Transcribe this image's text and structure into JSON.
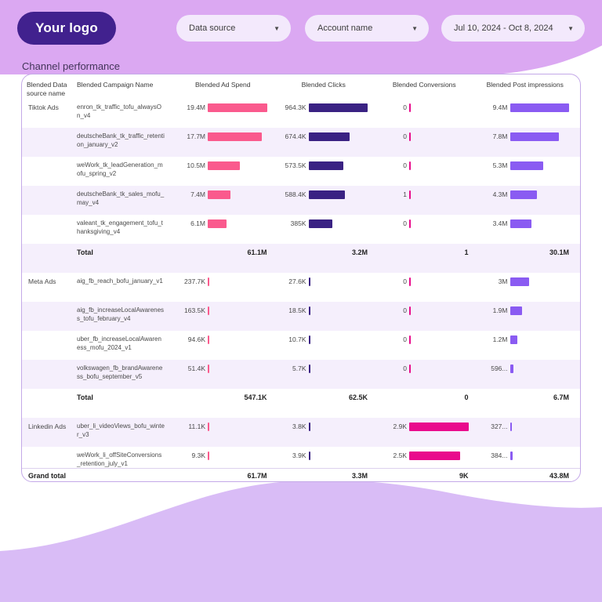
{
  "logo": {
    "label": "Your logo"
  },
  "filters": {
    "data_source": {
      "label": "Data source"
    },
    "account_name": {
      "label": "Account name"
    },
    "date_range": {
      "label": "Jul 10, 2024 - Oct 8, 2024"
    }
  },
  "section": {
    "title": "Channel performance"
  },
  "colors": {
    "top_wave": "#DBA8F2",
    "bottom_wave": "#D9BCF6",
    "logo_bg": "#41218E",
    "row_alt": "#F5EFFC",
    "spend_bar": "#FA5A8D",
    "clicks_bar": "#3A2283",
    "conversions_bar": "#E90B8C",
    "impressions_bar": "#8A5BF2"
  },
  "table": {
    "columns": [
      "Blended Data source name",
      "Blended Campaign Name",
      "Blended Ad Spend",
      "Blended Clicks",
      "Blended Conversions",
      "Blended Post impressions"
    ],
    "metric_max": [
      19400000,
      964300,
      2900,
      9400000
    ],
    "bar_colors": [
      "#FA5A8D",
      "#3A2283",
      "#E90B8C",
      "#8A5BF2"
    ],
    "rows": [
      {
        "type": "data",
        "source": "Tiktok Ads",
        "campaign": "enron_tk_traffic_tofu_alwaysOn_v4",
        "metrics": [
          {
            "label": "19.4M",
            "value": 19400000
          },
          {
            "label": "964.3K",
            "value": 964300
          },
          {
            "label": "0",
            "value": 0
          },
          {
            "label": "9.4M",
            "value": 9400000
          }
        ]
      },
      {
        "type": "data",
        "source": "",
        "campaign": "deutscheBank_tk_traffic_retention_january_v2",
        "metrics": [
          {
            "label": "17.7M",
            "value": 17700000
          },
          {
            "label": "674.4K",
            "value": 674400
          },
          {
            "label": "0",
            "value": 0
          },
          {
            "label": "7.8M",
            "value": 7800000
          }
        ]
      },
      {
        "type": "data",
        "source": "",
        "campaign": "weWork_tk_leadGeneration_mofu_spring_v2",
        "metrics": [
          {
            "label": "10.5M",
            "value": 10500000
          },
          {
            "label": "573.5K",
            "value": 573500
          },
          {
            "label": "0",
            "value": 0
          },
          {
            "label": "5.3M",
            "value": 5300000
          }
        ]
      },
      {
        "type": "data",
        "source": "",
        "campaign": "deutscheBank_tk_sales_mofu_may_v4",
        "metrics": [
          {
            "label": "7.4M",
            "value": 7400000
          },
          {
            "label": "588.4K",
            "value": 588400
          },
          {
            "label": "1",
            "value": 1
          },
          {
            "label": "4.3M",
            "value": 4300000
          }
        ]
      },
      {
        "type": "data",
        "source": "",
        "campaign": "valeant_tk_engagement_tofu_thanksgiving_v4",
        "metrics": [
          {
            "label": "6.1M",
            "value": 6100000
          },
          {
            "label": "385K",
            "value": 385000
          },
          {
            "label": "0",
            "value": 0
          },
          {
            "label": "3.4M",
            "value": 3400000
          }
        ]
      },
      {
        "type": "total",
        "label": "Total",
        "metrics": [
          {
            "label": "61.1M"
          },
          {
            "label": "3.2M"
          },
          {
            "label": "1"
          },
          {
            "label": "30.1M"
          }
        ]
      },
      {
        "type": "data",
        "source": "Meta Ads",
        "campaign": "aig_fb_reach_bofu_january_v1",
        "metrics": [
          {
            "label": "237.7K",
            "value": 237700
          },
          {
            "label": "27.6K",
            "value": 27600
          },
          {
            "label": "0",
            "value": 0
          },
          {
            "label": "3M",
            "value": 3000000
          }
        ]
      },
      {
        "type": "data",
        "source": "",
        "campaign": "aig_fb_increaseLocalAwareness_tofu_february_v4",
        "metrics": [
          {
            "label": "163.5K",
            "value": 163500
          },
          {
            "label": "18.5K",
            "value": 18500
          },
          {
            "label": "0",
            "value": 0
          },
          {
            "label": "1.9M",
            "value": 1900000
          }
        ]
      },
      {
        "type": "data",
        "source": "",
        "campaign": "uber_fb_increaseLocalAwareness_mofu_2024_v1",
        "metrics": [
          {
            "label": "94.6K",
            "value": 94600
          },
          {
            "label": "10.7K",
            "value": 10700
          },
          {
            "label": "0",
            "value": 0
          },
          {
            "label": "1.2M",
            "value": 1200000
          }
        ]
      },
      {
        "type": "data",
        "source": "",
        "campaign": "volkswagen_fb_brandAwareness_bofu_september_v5",
        "metrics": [
          {
            "label": "51.4K",
            "value": 51400
          },
          {
            "label": "5.7K",
            "value": 5700
          },
          {
            "label": "0",
            "value": 0
          },
          {
            "label": "596...",
            "value": 596000
          }
        ]
      },
      {
        "type": "total",
        "label": "Total",
        "metrics": [
          {
            "label": "547.1K"
          },
          {
            "label": "62.5K"
          },
          {
            "label": "0"
          },
          {
            "label": "6.7M"
          }
        ]
      },
      {
        "type": "data",
        "source": "Linkedin Ads",
        "campaign": "uber_li_videoViews_bofu_winter_v3",
        "metrics": [
          {
            "label": "11.1K",
            "value": 11100
          },
          {
            "label": "3.8K",
            "value": 3800
          },
          {
            "label": "2.9K",
            "value": 2900
          },
          {
            "label": "327...",
            "value": 327000
          }
        ]
      },
      {
        "type": "data",
        "source": "",
        "campaign": "weWork_li_offSiteConversions_retention_july_v1",
        "metrics": [
          {
            "label": "9.3K",
            "value": 9300
          },
          {
            "label": "3.9K",
            "value": 3900
          },
          {
            "label": "2.5K",
            "value": 2500
          },
          {
            "label": "384...",
            "value": 384000
          }
        ]
      },
      {
        "type": "grand",
        "label": "Grand total",
        "metrics": [
          {
            "label": "61.7M"
          },
          {
            "label": "3.3M"
          },
          {
            "label": "9K"
          },
          {
            "label": "43.8M"
          }
        ]
      }
    ]
  }
}
